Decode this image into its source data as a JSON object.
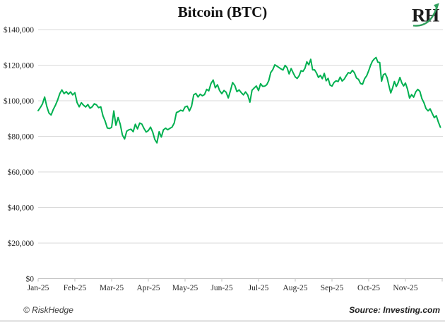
{
  "header": {
    "title": "Bitcoin (BTC)",
    "logo_text": "RH"
  },
  "footer": {
    "copyright": "© RiskHedge",
    "source": "Source: Investing.com"
  },
  "chart_data": {
    "type": "line",
    "title": "Bitcoin (BTC)",
    "series_name": "BTC price (USD)",
    "xlabel": "",
    "ylabel": "",
    "ylim": [
      0,
      140000
    ],
    "grid": "horizontal",
    "legend": "none",
    "x_tick_labels": [
      "Jan-25",
      "Feb-25",
      "Mar-25",
      "Apr-25",
      "May-25",
      "Jun-25",
      "Jul-25",
      "Aug-25",
      "Sep-25",
      "Oct-25",
      "Nov-25"
    ],
    "y_tick_labels": [
      "$0",
      "$20,000",
      "$40,000",
      "$60,000",
      "$80,000",
      "$100,000",
      "$120,000",
      "$140,000"
    ],
    "colors": {
      "line": "#00B050",
      "grid": "#DADADA",
      "axis": "#BFBFBF",
      "labels": "#262626",
      "logo_swoosh": "#2E9E5B"
    },
    "months": [
      {
        "label": "Jan-25",
        "values": [
          94400,
          96200,
          98200,
          102100,
          96900,
          93100,
          92000,
          95100,
          97500,
          100300,
          104000,
          106100,
          104000,
          105100,
          103700,
          105000,
          103300
        ]
      },
      {
        "label": "Feb-25",
        "values": [
          104500,
          99000,
          96600,
          98900,
          97500,
          96500,
          97900,
          95800,
          96600,
          98300,
          97700,
          96100,
          96600,
          91500,
          88600,
          84700,
          84400
        ]
      },
      {
        "label": "Mar-25",
        "values": [
          85000,
          94300,
          86200,
          90600,
          86800,
          80700,
          78500,
          82900,
          83700,
          84000,
          82600,
          86800,
          84200,
          87500,
          86900,
          84400,
          82400
        ]
      },
      {
        "label": "Apr-25",
        "values": [
          83200,
          85200,
          82500,
          78200,
          76300,
          82600,
          79600,
          83700,
          84600,
          83700,
          84500,
          85200,
          87500,
          93400,
          93900,
          94700,
          94200
        ]
      },
      {
        "label": "May-25",
        "values": [
          96500,
          97000,
          94200,
          96900,
          103300,
          104100,
          102100,
          103700,
          102800,
          103500,
          106400,
          105600,
          109700,
          111700,
          107300,
          109000,
          105700
        ]
      },
      {
        "label": "Jun-25",
        "values": [
          104000,
          105800,
          104800,
          101600,
          105600,
          110200,
          108600,
          105100,
          106100,
          104600,
          103300,
          105000,
          103300,
          99200,
          105900,
          107200,
          108300
        ]
      },
      {
        "label": "Jul-25",
        "values": [
          105700,
          109600,
          108100,
          108200,
          109000,
          111200,
          115900,
          117500,
          120200,
          119500,
          118700,
          117900,
          117300,
          119900,
          118600,
          115100,
          118100,
          115700
        ]
      },
      {
        "label": "Aug-25",
        "values": [
          113400,
          112500,
          114100,
          116900,
          116500,
          118200,
          121900,
          120200,
          123300,
          117400,
          117400,
          115600,
          113100,
          114300,
          112400,
          115400,
          111200,
          112600,
          108800
        ]
      },
      {
        "label": "Sep-25",
        "values": [
          108200,
          110300,
          111200,
          110800,
          113300,
          111100,
          112100,
          114100,
          115800,
          115400,
          117100,
          115700,
          112800,
          112000,
          109700,
          109300,
          112400,
          114000
        ]
      },
      {
        "label": "Oct-25",
        "values": [
          116900,
          119900,
          122200,
          123500,
          124300,
          121700,
          121500,
          111000,
          114700,
          115200,
          113000,
          108500,
          104400,
          107200,
          110800,
          108000,
          110100,
          113100,
          110100,
          108300
        ]
      },
      {
        "label": "Nov-25",
        "values": [
          110000,
          106500,
          101500,
          103500,
          102000,
          105000,
          106400,
          105300,
          101200,
          98900,
          95600,
          94300,
          95500,
          92900,
          90500,
          91600,
          88000,
          85100
        ]
      }
    ]
  }
}
